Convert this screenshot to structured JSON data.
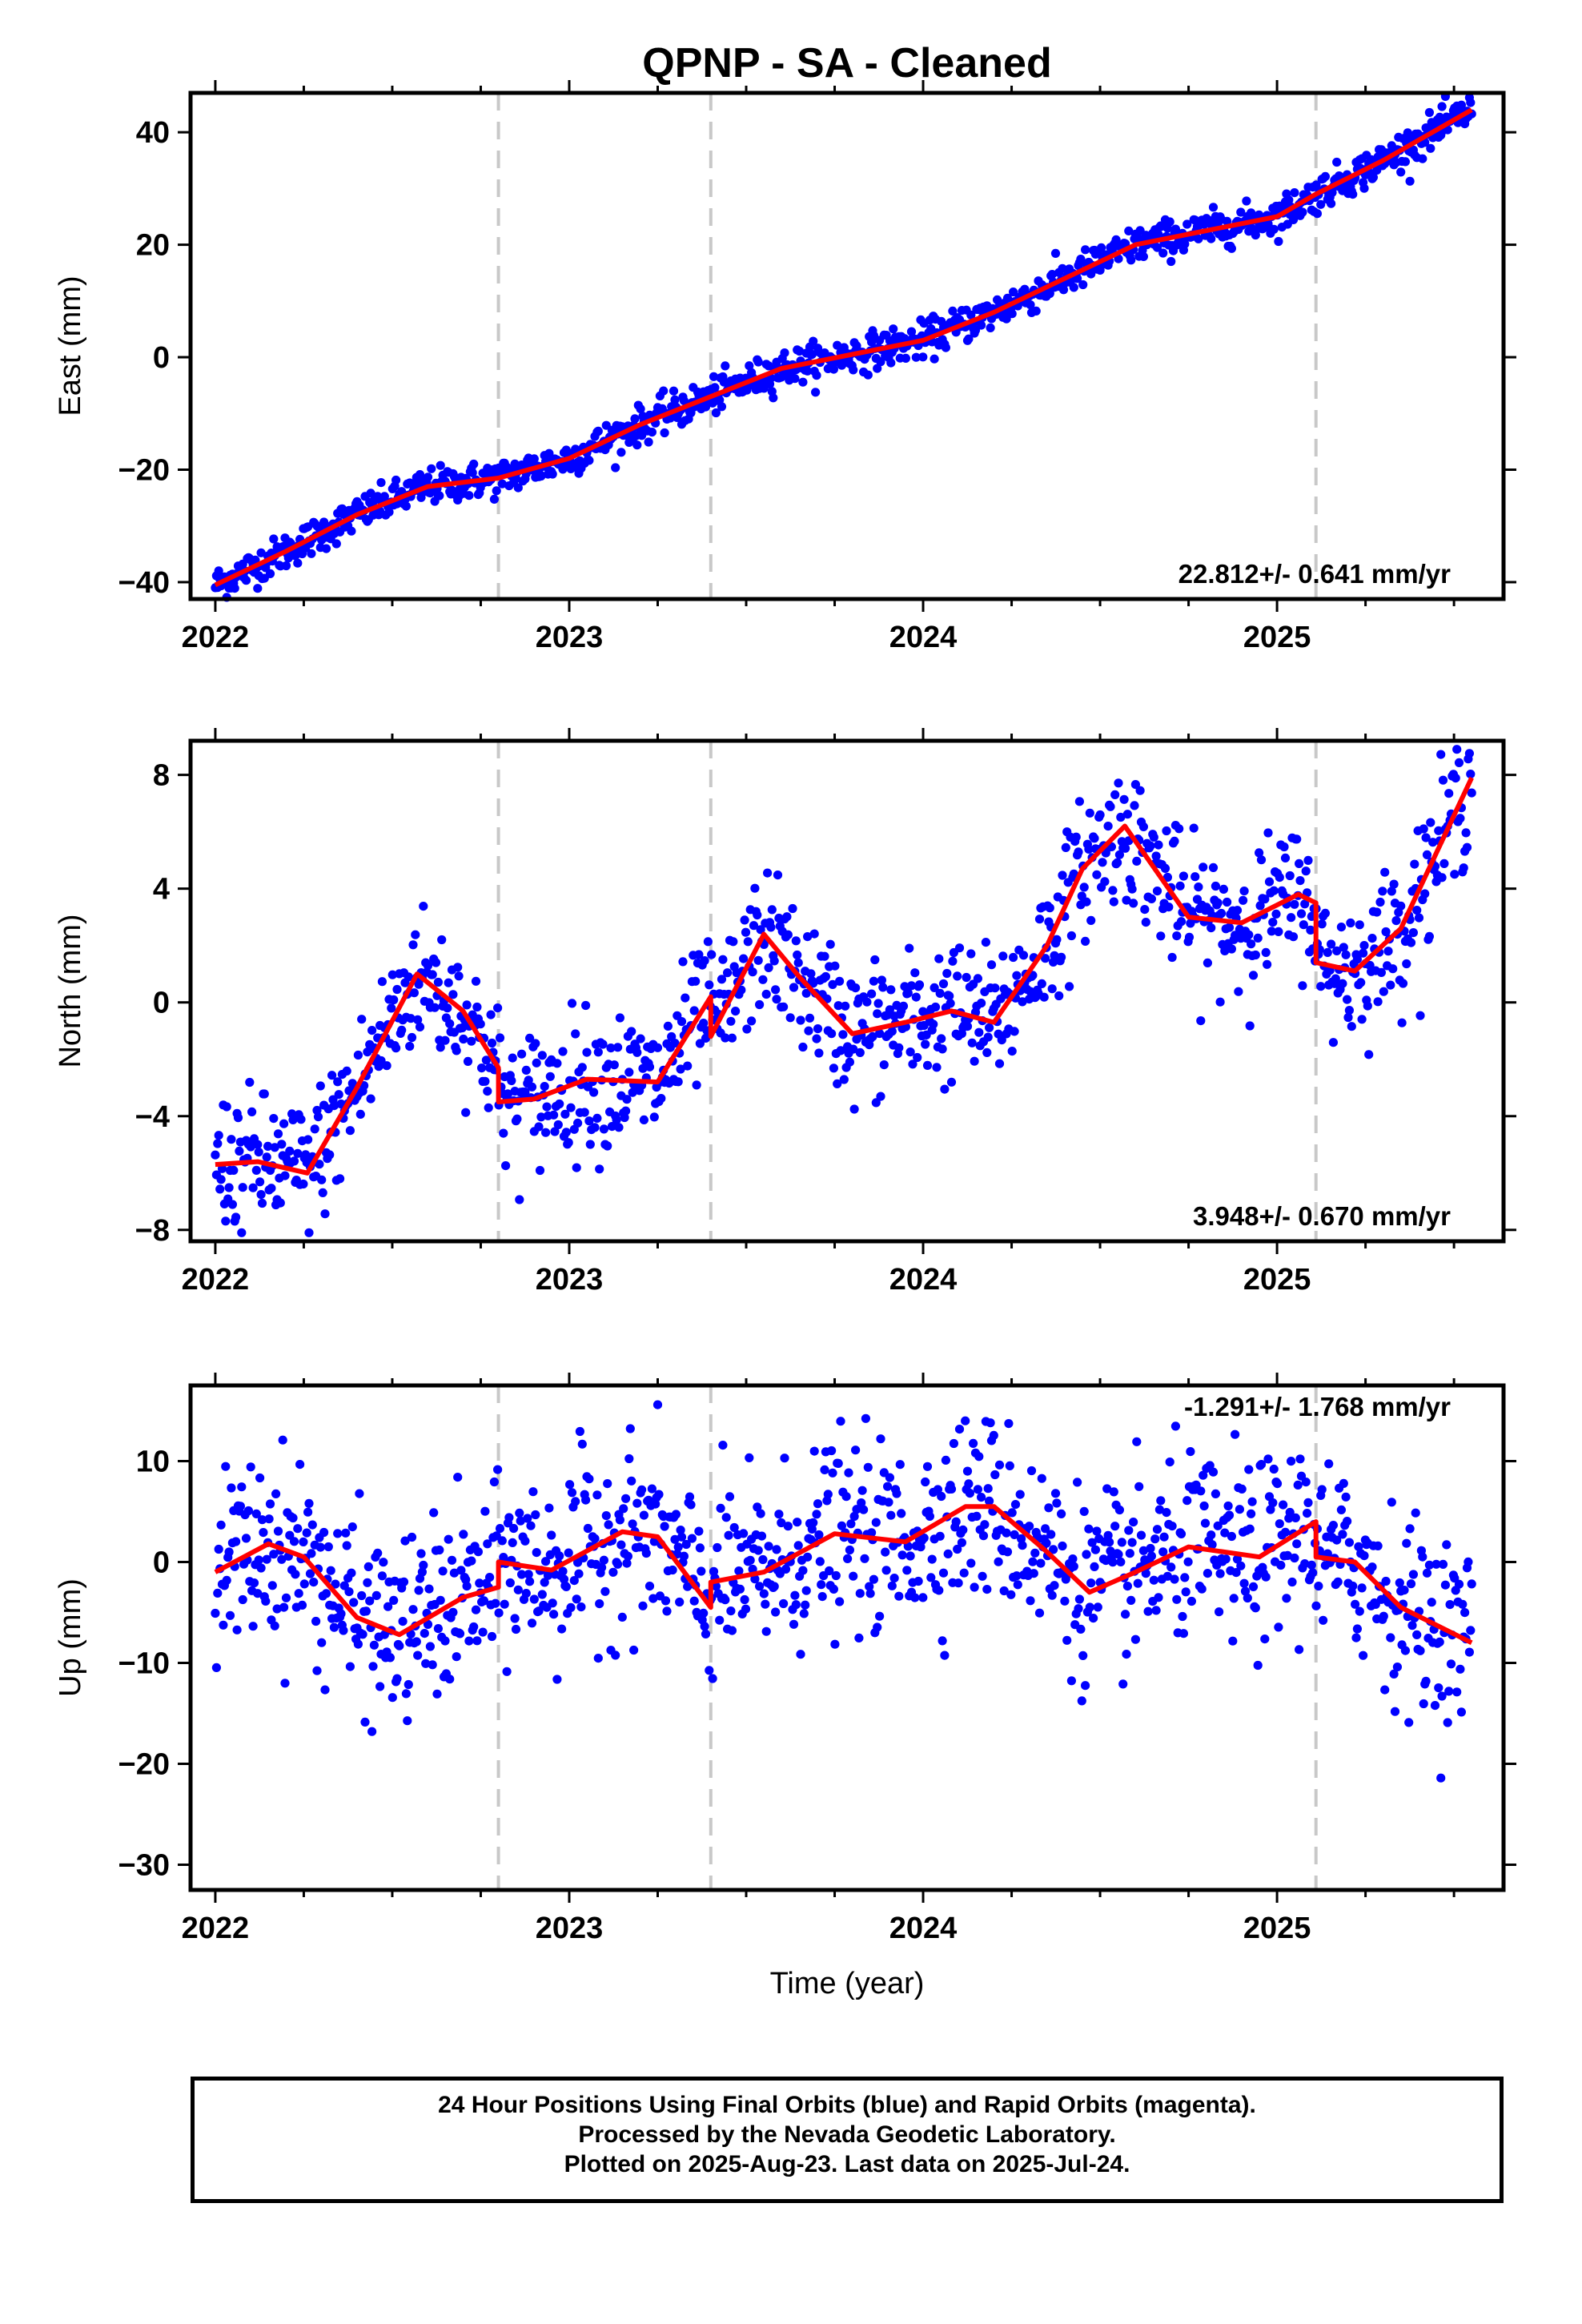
{
  "title": "QPNP  - SA - Cleaned",
  "xlabel": "Time (year)",
  "caption_lines": [
    "24 Hour Positions Using Final Orbits (blue) and Rapid Orbits (magenta).",
    "Processed by the Nevada Geodetic Laboratory.",
    "Plotted on 2025-Aug-23. Last data on 2025-Jul-24."
  ],
  "colors": {
    "points": "#0000ff",
    "model": "#ff0000",
    "breaks": "#c8c8c8",
    "frame": "#000000"
  },
  "chart_data": [
    {
      "type": "scatter",
      "component": "East",
      "ylabel": "East (mm)",
      "rate_label": "22.812+/- 0.641 mm/yr",
      "xlim": [
        2021.93,
        2025.64
      ],
      "ylim": [
        -43,
        47
      ],
      "x_ticks": [
        "2022",
        "2023",
        "2024",
        "2025"
      ],
      "y_ticks": [
        "−40",
        "−20",
        "0",
        "20",
        "40"
      ],
      "y_tick_values": [
        -40,
        -20,
        0,
        20,
        40
      ],
      "breaks": [
        2022.8,
        2023.4,
        2025.11
      ],
      "model_curve": {
        "x": [
          2022.0,
          2022.2,
          2022.4,
          2022.6,
          2022.8,
          2023.0,
          2023.2,
          2023.4,
          2023.6,
          2023.8,
          2024.0,
          2024.2,
          2024.4,
          2024.6,
          2024.8,
          2025.0,
          2025.11,
          2025.3,
          2025.55
        ],
        "y": [
          -40.5,
          -34.5,
          -28,
          -23,
          -21.5,
          -18,
          -12,
          -7,
          -2,
          0.5,
          3,
          8,
          14,
          20,
          22.5,
          25,
          29,
          35,
          44
        ]
      },
      "scatter_noise_mm": 1.6
    },
    {
      "type": "scatter",
      "component": "North",
      "ylabel": "North (mm)",
      "rate_label": "3.948+/- 0.670 mm/yr",
      "xlim": [
        2021.93,
        2025.64
      ],
      "ylim": [
        -8.4,
        9.2
      ],
      "x_ticks": [
        "2022",
        "2023",
        "2024",
        "2025"
      ],
      "y_ticks": [
        "−8",
        "−4",
        "0",
        "4",
        "8"
      ],
      "y_tick_values": [
        -8,
        -4,
        0,
        4,
        8
      ],
      "breaks": [
        2022.8,
        2023.4,
        2025.11
      ],
      "model_curve": {
        "x": [
          2022.0,
          2022.12,
          2022.26,
          2022.4,
          2022.57,
          2022.7,
          2022.8,
          2022.8,
          2022.9,
          2023.05,
          2023.25,
          2023.4,
          2023.4,
          2023.55,
          2023.65,
          2023.8,
          2023.95,
          2024.08,
          2024.2,
          2024.35,
          2024.45,
          2024.57,
          2024.75,
          2024.9,
          2025.06,
          2025.11,
          2025.11,
          2025.22,
          2025.35,
          2025.55
        ],
        "y": [
          -5.7,
          -5.6,
          -6.0,
          -3.0,
          1.0,
          -0.3,
          -2.3,
          -3.5,
          -3.4,
          -2.7,
          -2.8,
          0.2,
          -1.2,
          2.4,
          0.9,
          -1.1,
          -0.7,
          -0.3,
          -0.7,
          2.0,
          4.7,
          6.2,
          3.0,
          2.8,
          3.8,
          3.5,
          1.4,
          1.1,
          2.6,
          7.9
        ]
      },
      "scatter_noise_mm": 1.2
    },
    {
      "type": "scatter",
      "component": "Up",
      "ylabel": "Up (mm)",
      "rate_label": "-1.291+/- 1.768 mm/yr",
      "xlim": [
        2021.93,
        2025.64
      ],
      "ylim": [
        -32.5,
        17.5
      ],
      "x_ticks": [
        "2022",
        "2023",
        "2024",
        "2025"
      ],
      "y_ticks": [
        "−30",
        "−20",
        "−10",
        "0",
        "10"
      ],
      "y_tick_values": [
        -30,
        -20,
        -10,
        0,
        10
      ],
      "breaks": [
        2022.8,
        2023.4,
        2025.11
      ],
      "model_curve": {
        "x": [
          2022.0,
          2022.15,
          2022.25,
          2022.4,
          2022.52,
          2022.7,
          2022.8,
          2022.8,
          2022.95,
          2023.15,
          2023.25,
          2023.4,
          2023.4,
          2023.55,
          2023.75,
          2023.95,
          2024.12,
          2024.2,
          2024.35,
          2024.47,
          2024.6,
          2024.75,
          2024.95,
          2025.11,
          2025.11,
          2025.22,
          2025.35,
          2025.55
        ],
        "y": [
          -1.0,
          1.8,
          0.5,
          -5.5,
          -7.2,
          -3.5,
          -2.5,
          0.0,
          -0.8,
          3.0,
          2.5,
          -4.5,
          -2.0,
          -1.0,
          2.8,
          2.0,
          5.5,
          5.5,
          1.0,
          -3.0,
          -1.0,
          1.5,
          0.5,
          4.0,
          0.5,
          0.0,
          -4.5,
          -8.0
        ]
      },
      "scatter_noise_mm": 4.5
    }
  ]
}
